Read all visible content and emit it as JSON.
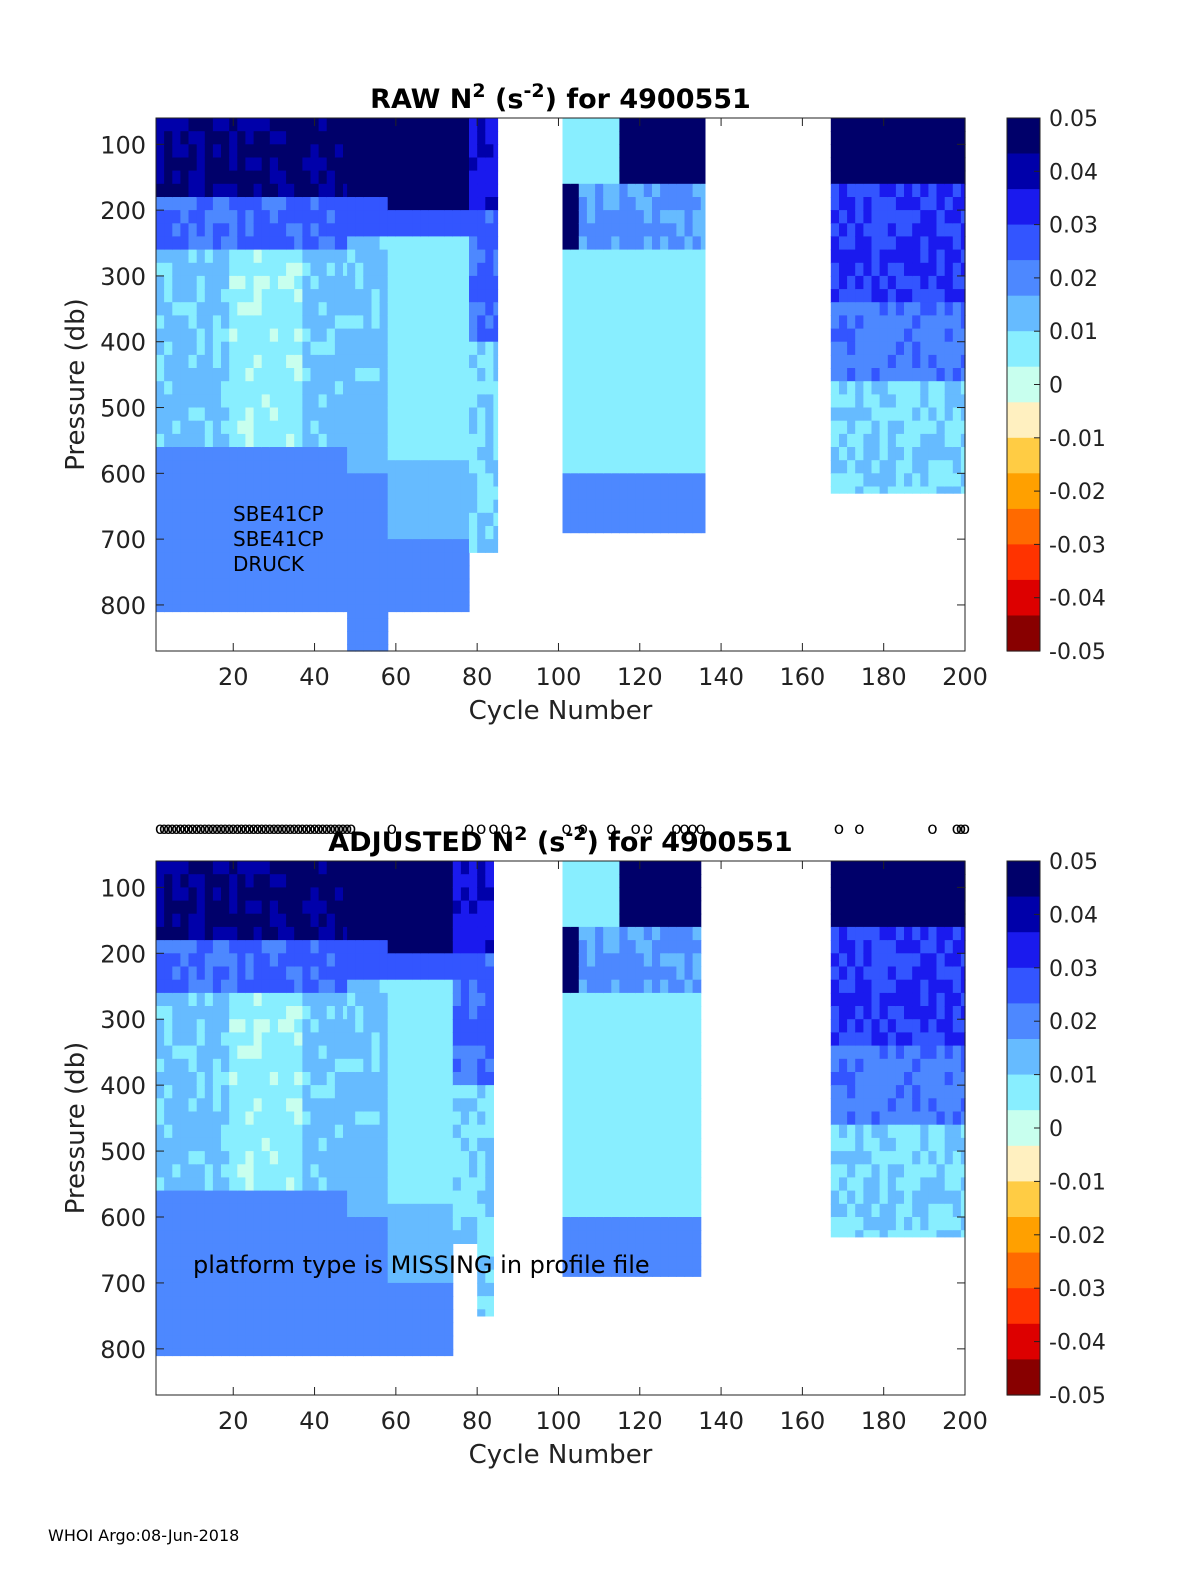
{
  "footer": "WHOI Argo:08-Jun-2018",
  "colorbar": {
    "ticks": [
      "0.05",
      "0.04",
      "0.03",
      "0.02",
      "0.01",
      "0",
      "-0.01",
      "-0.02",
      "-0.03",
      "-0.04",
      "-0.05"
    ],
    "colors": [
      "#00006a",
      "#0000aa",
      "#1a1aee",
      "#3355ff",
      "#4d88ff",
      "#66bbff",
      "#88eeff",
      "#c8ffee",
      "#fff0c0",
      "#ffcc44",
      "#ffa000",
      "#ff6a00",
      "#ff3300",
      "#dd0000",
      "#880000"
    ]
  },
  "chart_data": [
    {
      "type": "heatmap",
      "title_prefix": "RAW N",
      "title_sup1": "2",
      "title_mid": " (s",
      "title_sup2": "-2",
      "title_suffix": ") for 4900551",
      "xlabel": "Cycle Number",
      "ylabel": "Pressure (db)",
      "xlim": [
        1,
        200
      ],
      "ylim": [
        60,
        870
      ],
      "xticks": [
        "20",
        "40",
        "60",
        "80",
        "100",
        "120",
        "140",
        "160",
        "180",
        "200"
      ],
      "yticks": [
        "100",
        "200",
        "300",
        "400",
        "500",
        "600",
        "700",
        "800"
      ],
      "annotation_lines": [
        "SBE41CP",
        "SBE41CP",
        "DRUCK"
      ],
      "value_range": [
        -0.05,
        0.05
      ],
      "cycle_bands": [
        {
          "x0": 1,
          "x1": 48,
          "pmax": 810,
          "profile": "earlyA"
        },
        {
          "x0": 48,
          "x1": 58,
          "pmax": 870,
          "profile": "midA"
        },
        {
          "x0": 58,
          "x1": 78,
          "pmax": 810,
          "profile": "midB"
        },
        {
          "x0": 78,
          "x1": 85,
          "pmax": 720,
          "profile": "midC"
        },
        {
          "x0": 101,
          "x1": 136,
          "pmax": 690,
          "profile": "middle"
        },
        {
          "x0": 167,
          "x1": 200,
          "pmax": 630,
          "profile": "late"
        }
      ]
    },
    {
      "type": "heatmap",
      "title_prefix": "ADJUSTED N",
      "title_sup1": "2",
      "title_mid": " (s",
      "title_sup2": "-2",
      "title_suffix": ") for 4900551",
      "xlabel": "Cycle Number",
      "ylabel": "Pressure (db)",
      "xlim": [
        1,
        200
      ],
      "ylim": [
        60,
        870
      ],
      "xticks": [
        "20",
        "40",
        "60",
        "80",
        "100",
        "120",
        "140",
        "160",
        "180",
        "200"
      ],
      "yticks": [
        "100",
        "200",
        "300",
        "400",
        "500",
        "600",
        "700",
        "800"
      ],
      "annotation": "platform type is MISSING in profile file",
      "qc_marker": "o",
      "qc_cycles": [
        2,
        3,
        4,
        5,
        6,
        7,
        8,
        9,
        10,
        11,
        12,
        13,
        14,
        15,
        16,
        17,
        18,
        19,
        20,
        21,
        22,
        23,
        24,
        25,
        26,
        27,
        28,
        29,
        30,
        31,
        32,
        33,
        34,
        35,
        36,
        37,
        38,
        39,
        40,
        41,
        42,
        43,
        44,
        45,
        46,
        47,
        48,
        49,
        59,
        78,
        81,
        84,
        87,
        102,
        106,
        113,
        119,
        122,
        129,
        131,
        133,
        135,
        169,
        174,
        192,
        198,
        199,
        200
      ],
      "value_range": [
        -0.05,
        0.05
      ],
      "cycle_bands": [
        {
          "x0": 1,
          "x1": 48,
          "pmax": 810,
          "profile": "earlyA"
        },
        {
          "x0": 48,
          "x1": 58,
          "pmax": 810,
          "profile": "midA"
        },
        {
          "x0": 58,
          "x1": 74,
          "pmax": 810,
          "profile": "midB"
        },
        {
          "x0": 74,
          "x1": 80,
          "pmax": 640,
          "profile": "midC"
        },
        {
          "x0": 80,
          "x1": 84,
          "pmax": 750,
          "profile": "midC"
        },
        {
          "x0": 101,
          "x1": 135,
          "pmax": 690,
          "profile": "middle"
        },
        {
          "x0": 167,
          "x1": 200,
          "pmax": 630,
          "profile": "late"
        }
      ]
    }
  ]
}
